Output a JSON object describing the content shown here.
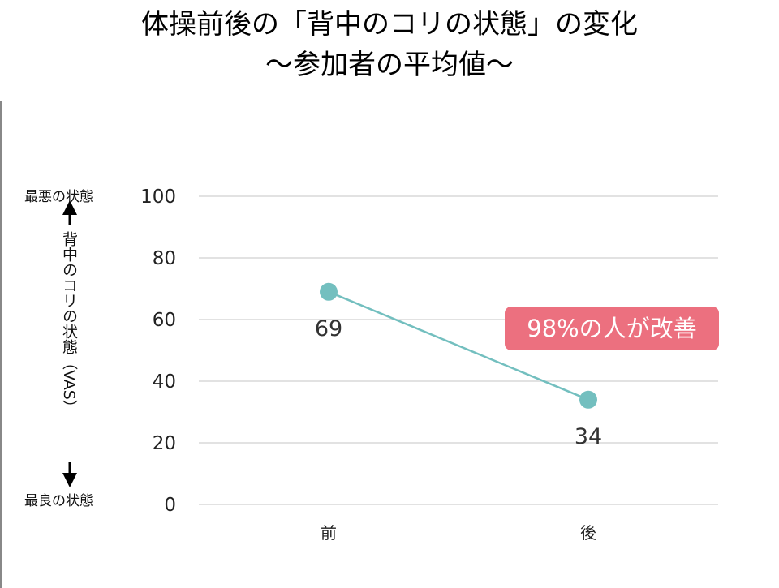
{
  "title_line1": "体操前後の「背中のコリの状態」の変化",
  "title_line2": "～参加者の平均値～",
  "axis": {
    "top_label": "最悪の状態",
    "bottom_label": "最良の状態",
    "ylabel": "背中のコリの状態（VAS）"
  },
  "badge": "98%の人が改善",
  "colors": {
    "line": "#73bfbf",
    "badge": "#ec707f",
    "grid": "#d9d9d9"
  },
  "chart_data": {
    "type": "line",
    "categories": [
      "前",
      "後"
    ],
    "values": [
      69,
      34
    ],
    "data_labels": [
      "69",
      "34"
    ],
    "ylim": [
      0,
      100
    ],
    "yticks": [
      "0",
      "20",
      "40",
      "60",
      "80",
      "100"
    ],
    "grid": true
  }
}
